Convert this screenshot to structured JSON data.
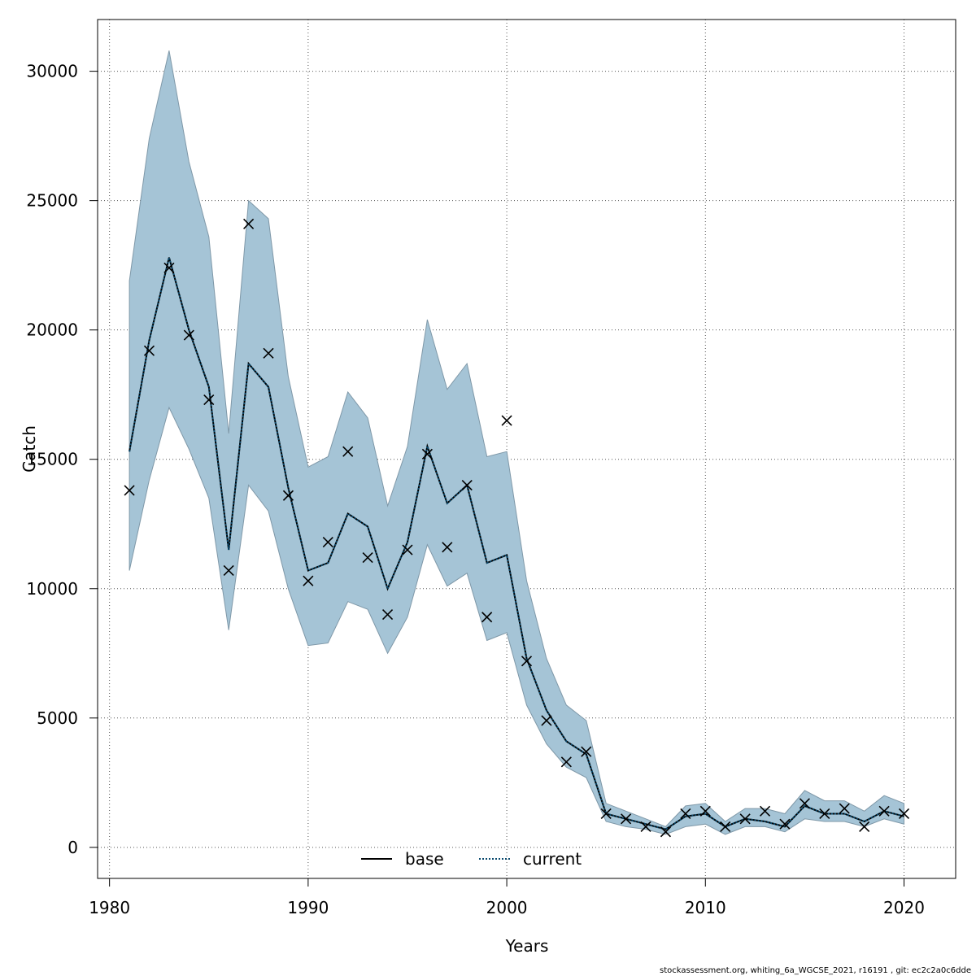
{
  "chart_data": {
    "type": "line",
    "title": "",
    "xlabel": "Years",
    "ylabel": "Catch",
    "xlim": [
      1979.4,
      2022.6
    ],
    "ylim": [
      -1200,
      32000
    ],
    "x_ticks": [
      1980,
      1990,
      2000,
      2010,
      2020
    ],
    "y_ticks": [
      0,
      5000,
      10000,
      15000,
      20000,
      25000,
      30000
    ],
    "grid": true,
    "legend_position": "bottom-center",
    "colors": {
      "band": "#a5c4d6",
      "band_stroke": "#7f98a8",
      "current_line": "#0a4a6e",
      "base_line": "#000000",
      "observed": "#000000",
      "grid": "#555555"
    },
    "years": [
      1981,
      1982,
      1983,
      1984,
      1985,
      1986,
      1987,
      1988,
      1989,
      1990,
      1991,
      1992,
      1993,
      1994,
      1995,
      1996,
      1997,
      1998,
      1999,
      2000,
      2001,
      2002,
      2003,
      2004,
      2005,
      2006,
      2007,
      2008,
      2009,
      2010,
      2011,
      2012,
      2013,
      2014,
      2015,
      2016,
      2017,
      2018,
      2019,
      2020
    ],
    "series": [
      {
        "name": "base",
        "values": [
          15300,
          19600,
          22800,
          20000,
          17800,
          11500,
          18700,
          17800,
          13900,
          10700,
          11000,
          12900,
          12400,
          10000,
          11800,
          15500,
          13300,
          14000,
          11000,
          11300,
          7300,
          5300,
          4100,
          3600,
          1300,
          1100,
          900,
          700,
          1200,
          1300,
          800,
          1100,
          1000,
          800,
          1600,
          1300,
          1300,
          1000,
          1400,
          1200
        ]
      },
      {
        "name": "current",
        "values": [
          15300,
          19600,
          22800,
          20000,
          17800,
          11500,
          18700,
          17800,
          13900,
          10700,
          11000,
          12900,
          12400,
          10000,
          11800,
          15500,
          13300,
          14000,
          11000,
          11300,
          7300,
          5300,
          4100,
          3600,
          1300,
          1100,
          900,
          700,
          1200,
          1300,
          800,
          1100,
          1000,
          800,
          1600,
          1300,
          1300,
          1000,
          1400,
          1200
        ]
      }
    ],
    "band_upper": [
      21900,
      27400,
      30800,
      26500,
      23600,
      16000,
      25000,
      24300,
      18200,
      14700,
      15100,
      17600,
      16600,
      13200,
      15500,
      20400,
      17700,
      18700,
      15100,
      15300,
      10300,
      7300,
      5500,
      4900,
      1700,
      1400,
      1100,
      800,
      1600,
      1700,
      1000,
      1500,
      1500,
      1300,
      2200,
      1800,
      1800,
      1400,
      2000,
      1700
    ],
    "band_lower": [
      10700,
      14200,
      17000,
      15400,
      13500,
      8400,
      14000,
      13000,
      10000,
      7800,
      7900,
      9500,
      9200,
      7500,
      8900,
      11700,
      10100,
      10600,
      8000,
      8300,
      5500,
      4000,
      3100,
      2700,
      1000,
      800,
      700,
      500,
      800,
      900,
      500,
      800,
      800,
      600,
      1100,
      1000,
      1000,
      800,
      1100,
      900
    ],
    "observed": [
      13800,
      19200,
      22400,
      19800,
      17300,
      10700,
      24100,
      19100,
      13600,
      10300,
      11800,
      15300,
      11200,
      9000,
      11500,
      15200,
      11600,
      14000,
      8900,
      16500,
      7200,
      4900,
      3300,
      3700,
      1300,
      1100,
      800,
      600,
      1300,
      1400,
      800,
      1100,
      1400,
      900,
      1700,
      1300,
      1500,
      800,
      1400,
      1300
    ]
  },
  "footer_text": "stockassessment.org, whiting_6a_WGCSE_2021, r16191 , git: ec2c2a0c6dde"
}
